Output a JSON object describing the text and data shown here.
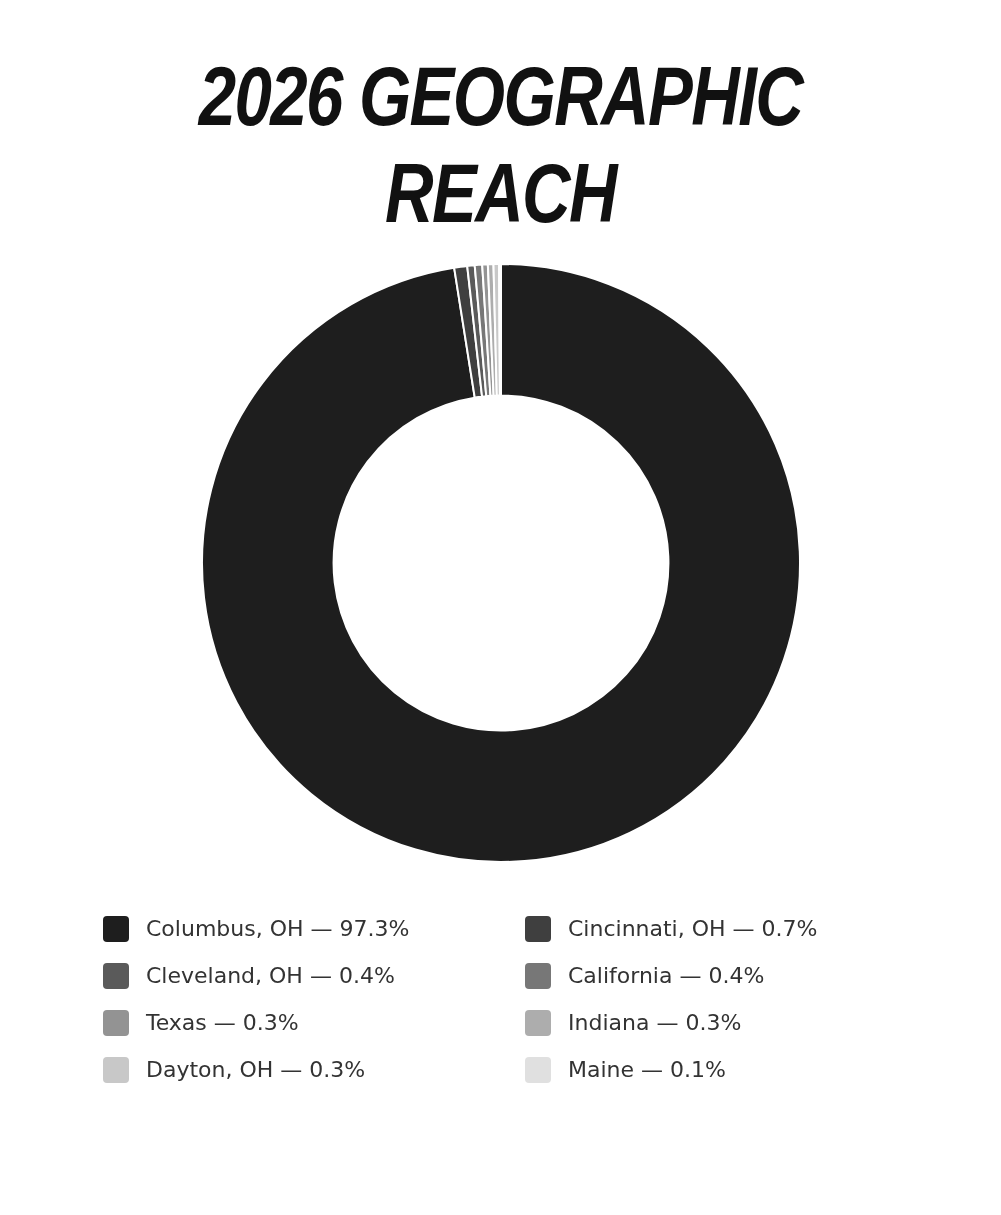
{
  "chart_data": {
    "type": "donut",
    "title": "2026 GEOGRAPHIC REACH",
    "categories": [
      "Columbus, OH — 97.3%",
      "Cincinnati, OH — 0.7%",
      "Cleveland, OH — 0.4%",
      "California — 0.4%",
      "Texas — 0.3%",
      "Indiana — 0.3%",
      "Dayton, OH — 0.3%",
      "Maine — 0.1%"
    ],
    "values": [
      97.3,
      0.7,
      0.4,
      0.4,
      0.3,
      0.3,
      0.3,
      0.1
    ],
    "colors": [
      "#1e1e1e",
      "#3f3f3f",
      "#5a5a5a",
      "#777777",
      "#939393",
      "#adadad",
      "#c8c8c8",
      "#e0e0e0"
    ],
    "legend": "bottom"
  }
}
